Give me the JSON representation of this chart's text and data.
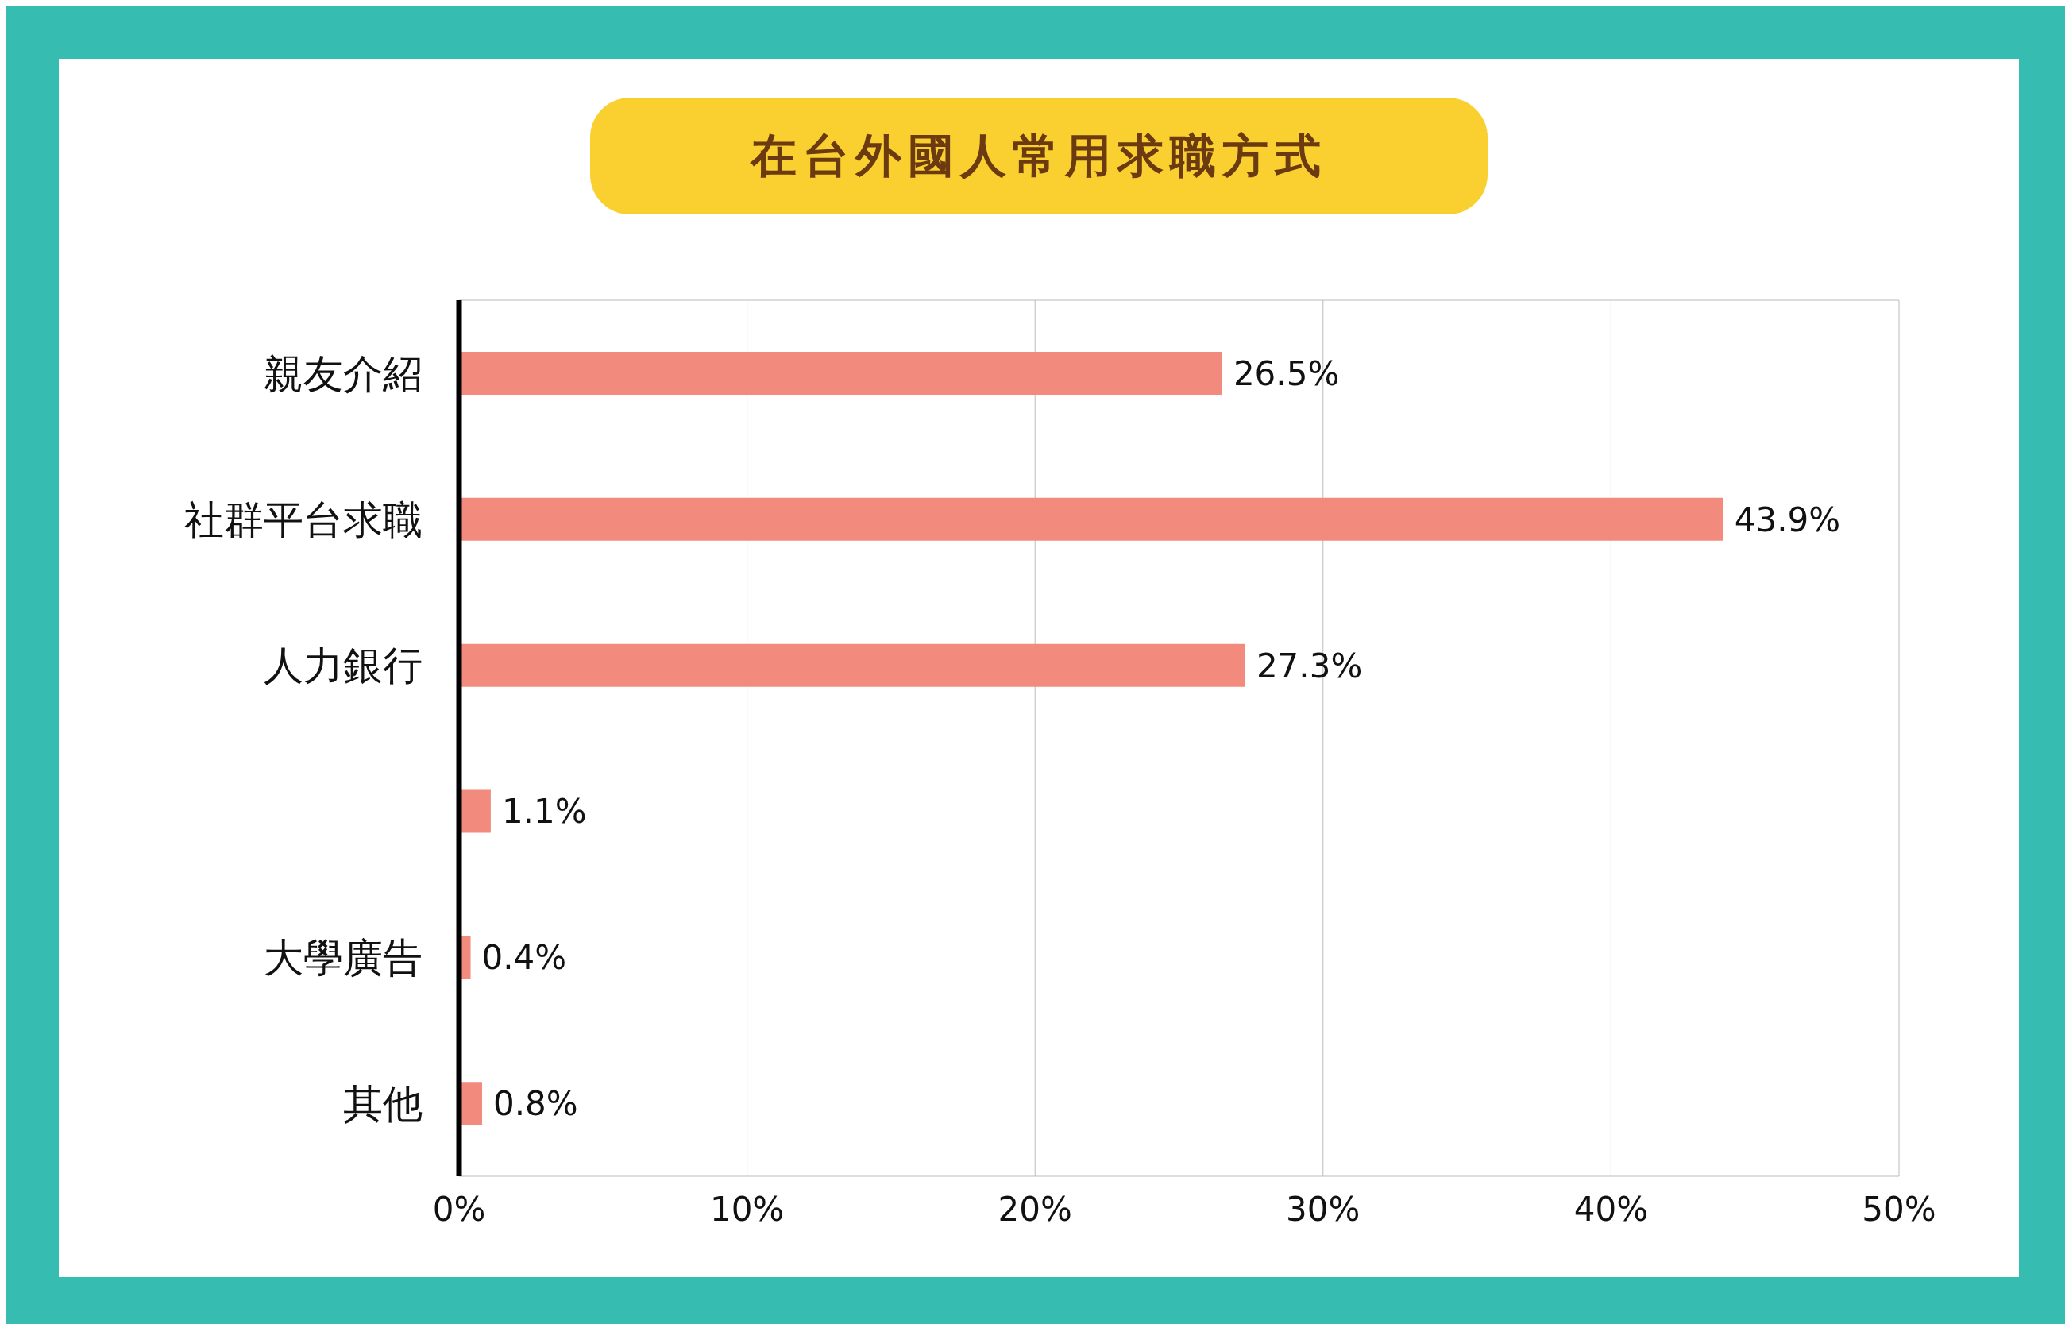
{
  "chart_data": {
    "type": "bar",
    "orientation": "horizontal",
    "title": "在台外國人常用求職方式",
    "categories": [
      "親友介紹",
      "社群平台求職",
      "人力銀行",
      null,
      "大學廣告",
      "其他"
    ],
    "values": [
      26.5,
      43.9,
      27.3,
      1.1,
      0.4,
      0.8
    ],
    "value_labels": [
      "26.5%",
      "43.9%",
      "27.3%",
      "1.1%",
      "0.4%",
      "0.8%"
    ],
    "color": "#f28b7e",
    "xlim": [
      0,
      50
    ],
    "xticks": [
      {
        "value": 0,
        "label": "0%"
      },
      {
        "value": 10,
        "label": "10%"
      },
      {
        "value": 20,
        "label": "20%"
      },
      {
        "value": 30,
        "label": "30%"
      },
      {
        "value": 40,
        "label": "40%"
      },
      {
        "value": 50,
        "label": "50%"
      }
    ],
    "grid": "x"
  }
}
